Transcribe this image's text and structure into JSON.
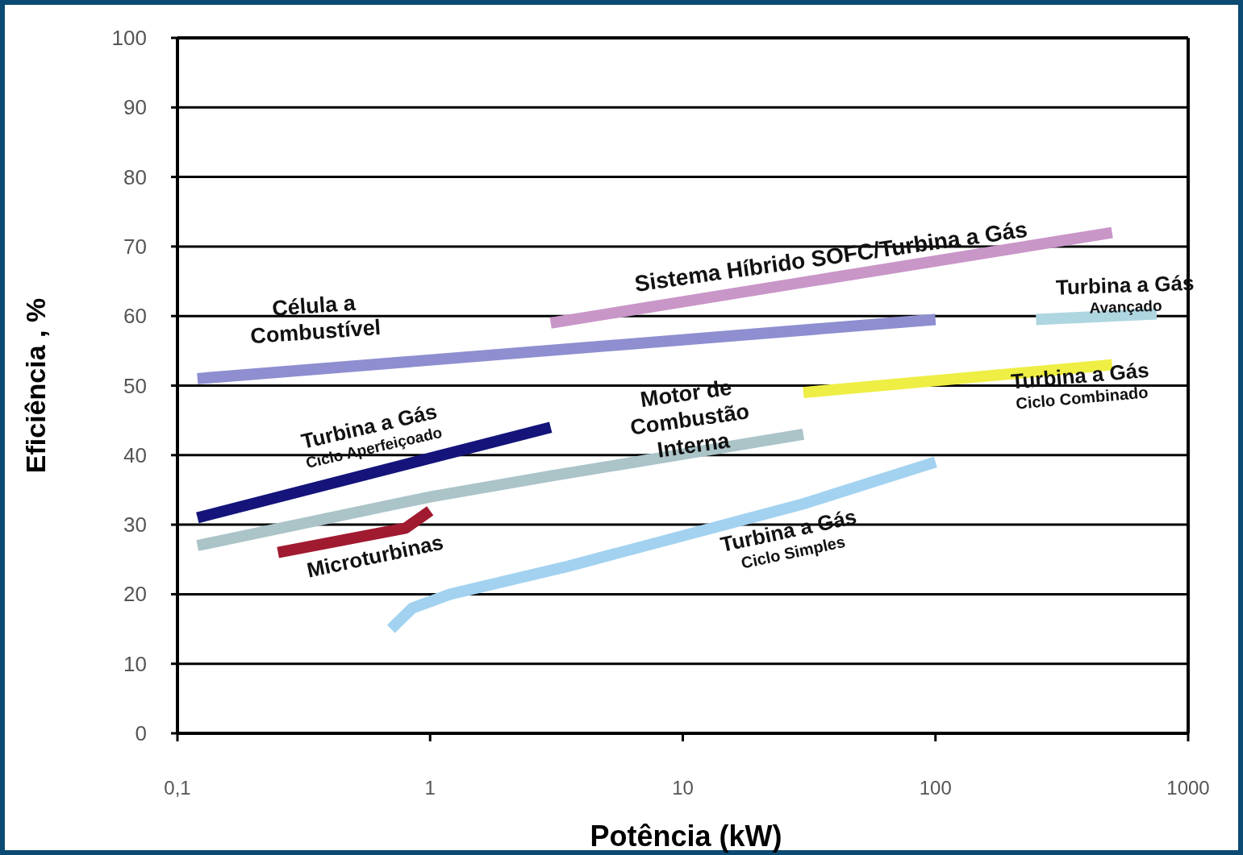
{
  "chart_data": {
    "type": "line",
    "xlabel": "Potência (kW)",
    "ylabel": "Eficiência , %",
    "log": "x",
    "grid": "y",
    "marker": "none",
    "line_style": "solid",
    "xlim": [
      0.1,
      1000
    ],
    "xticks": [
      {
        "value": 0.1,
        "label": "0,1"
      },
      1,
      10,
      100,
      1000
    ],
    "ylim": [
      0,
      100
    ],
    "yticks": [
      0,
      10,
      20,
      30,
      40,
      50,
      60,
      70,
      80,
      90,
      100
    ],
    "series": [
      {
        "name": "Célula a\nCombustível",
        "color": "#8e8ed0",
        "x": [
          0.12,
          100
        ],
        "values": [
          51,
          59.5
        ]
      },
      {
        "name": "Sistema Híbrido SOFC/Turbina a Gás",
        "color": "#c996c8",
        "x": [
          3,
          500
        ],
        "values": [
          59,
          72
        ]
      },
      {
        "name": "Turbina a Gás\nAvançado",
        "color": "#aed6e0",
        "x": [
          250,
          750
        ],
        "values": [
          59.5,
          60.3
        ]
      },
      {
        "name": "Turbina a Gás\nCiclo Combinado",
        "color": "#eeee44",
        "x": [
          30,
          500
        ],
        "values": [
          49,
          53
        ]
      },
      {
        "name": "Turbina a Gás\nCiclo Aperfeiçoado",
        "color": "#14147a",
        "x": [
          0.12,
          3
        ],
        "values": [
          31,
          44
        ]
      },
      {
        "name": "Motor de\nCombustão\nInterna",
        "color": "#aac4c8",
        "x": [
          0.12,
          1,
          3,
          30
        ],
        "values": [
          27,
          34,
          37,
          43
        ]
      },
      {
        "name": "Microturbinas",
        "color": "#a01a30",
        "x": [
          0.25,
          0.8,
          1
        ],
        "values": [
          26,
          29.5,
          32
        ]
      },
      {
        "name": "Turbina a Gás\nCiclo Simples",
        "color": "#a2d2f0",
        "x": [
          0.7,
          0.85,
          1.2,
          3.5,
          30,
          100
        ],
        "values": [
          15,
          18,
          20,
          24,
          33,
          39
        ]
      }
    ]
  }
}
